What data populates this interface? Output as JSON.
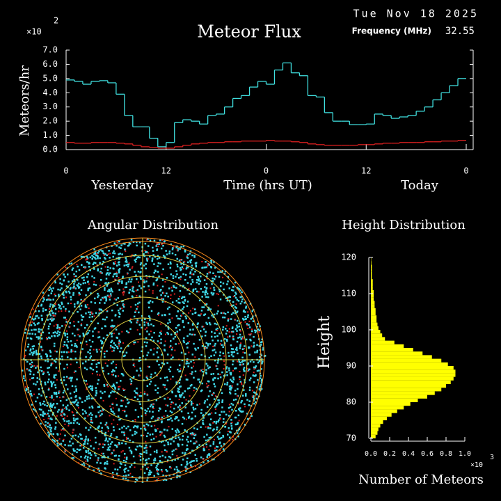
{
  "header": {
    "date": "Tue Nov 18 2025",
    "frequency_label": "Frequency (MHz)",
    "frequency": "32.55"
  },
  "chart_data": [
    {
      "type": "line",
      "step": true,
      "title": "Meteor Flux",
      "ylabel": "Meteors/hr",
      "multiplier": "×10",
      "multiplier_exponent": "2",
      "xlabel": "Time (hrs UT)",
      "day_labels": [
        "Yesterday",
        "Today"
      ],
      "x": [
        0,
        1,
        2,
        3,
        4,
        5,
        6,
        7,
        8,
        9,
        10,
        11,
        12,
        13,
        14,
        15,
        16,
        17,
        18,
        19,
        20,
        21,
        22,
        23,
        24,
        25,
        26,
        27,
        28,
        29,
        30,
        31,
        32,
        33,
        34,
        35,
        36,
        37,
        38,
        39,
        40,
        41,
        42,
        43,
        44,
        45,
        46,
        47
      ],
      "series": [
        {
          "color": "#40e0e0",
          "values": [
            4.9,
            4.8,
            4.6,
            4.8,
            4.85,
            4.7,
            3.9,
            2.4,
            1.6,
            1.6,
            0.8,
            0.2,
            0.5,
            1.9,
            2.1,
            2.0,
            1.8,
            2.4,
            2.5,
            3.0,
            3.6,
            3.8,
            4.4,
            4.8,
            4.6,
            5.6,
            6.1,
            5.4,
            5.2,
            3.8,
            3.7,
            2.6,
            2.0,
            2.0,
            1.75,
            1.75,
            1.8,
            2.5,
            2.4,
            2.2,
            2.3,
            2.4,
            2.7,
            3.0,
            3.5,
            4.0,
            4.5,
            5.0
          ]
        },
        {
          "color": "#e02020",
          "values": [
            0.5,
            0.45,
            0.45,
            0.5,
            0.5,
            0.5,
            0.45,
            0.4,
            0.3,
            0.2,
            0.15,
            0.1,
            0.1,
            0.2,
            0.3,
            0.4,
            0.45,
            0.5,
            0.5,
            0.55,
            0.55,
            0.6,
            0.6,
            0.6,
            0.65,
            0.6,
            0.6,
            0.55,
            0.5,
            0.4,
            0.35,
            0.3,
            0.3,
            0.3,
            0.3,
            0.35,
            0.35,
            0.4,
            0.45,
            0.45,
            0.5,
            0.5,
            0.5,
            0.55,
            0.55,
            0.6,
            0.6,
            0.65
          ]
        }
      ],
      "xlim": [
        0,
        48
      ],
      "xticks": [
        0,
        12,
        {
          "value": 24,
          "label": "0"
        },
        {
          "value": 36,
          "label": "12"
        },
        {
          "value": 48,
          "label": "0"
        }
      ],
      "ylim": [
        0,
        7
      ],
      "yticks": [
        {
          "value": 0,
          "label": "0.0"
        },
        {
          "value": 1,
          "label": "1.0"
        },
        {
          "value": 2,
          "label": "2.0"
        },
        {
          "value": 3,
          "label": "3.0"
        },
        {
          "value": 4,
          "label": "4.0"
        },
        {
          "value": 5,
          "label": "5.0"
        },
        {
          "value": 6,
          "label": "6.0"
        },
        {
          "value": 7,
          "label": "7.0"
        }
      ]
    },
    {
      "type": "polar_scatter",
      "title": "Angular Distribution"
    },
    {
      "type": "histogram",
      "orientation": "horizontal",
      "title": "Height Distribution",
      "ylabel": "Height",
      "xlabel": "Number of Meteors",
      "multiplier": "×10",
      "multiplier_exponent": "3",
      "color": "#ffff00",
      "bins": [
        70,
        71,
        72,
        73,
        74,
        75,
        76,
        77,
        78,
        79,
        80,
        81,
        82,
        83,
        84,
        85,
        86,
        87,
        88,
        89,
        90,
        91,
        92,
        93,
        94,
        95,
        96,
        97,
        98,
        99,
        100,
        101,
        102,
        103,
        104,
        105,
        106,
        107,
        108,
        109,
        110,
        111,
        112,
        113,
        114,
        115,
        116,
        117,
        118,
        119,
        120
      ],
      "values": [
        0.05,
        0.07,
        0.08,
        0.1,
        0.13,
        0.17,
        0.22,
        0.28,
        0.35,
        0.42,
        0.5,
        0.6,
        0.68,
        0.75,
        0.8,
        0.85,
        0.88,
        0.9,
        0.9,
        0.88,
        0.82,
        0.75,
        0.65,
        0.55,
        0.45,
        0.35,
        0.25,
        0.15,
        0.12,
        0.1,
        0.08,
        0.07,
        0.06,
        0.06,
        0.05,
        0.05,
        0.04,
        0.04,
        0.03,
        0.03,
        0.03,
        0.02,
        0.02,
        0.02,
        0.01,
        0.01,
        0.01,
        0.01,
        0.005,
        0.003
      ],
      "ylim": [
        70,
        120
      ],
      "yticks": [
        70,
        80,
        90,
        100,
        110,
        120
      ],
      "xlim": [
        0,
        1
      ],
      "xticks": [
        {
          "value": 0,
          "label": "0.0"
        },
        {
          "value": 0.2,
          "label": "0.2"
        },
        {
          "value": 0.4,
          "label": "0.4"
        },
        {
          "value": 0.6,
          "label": "0.6"
        },
        {
          "value": 0.8,
          "label": "0.8"
        },
        {
          "value": 1,
          "label": "1.0"
        }
      ]
    }
  ]
}
